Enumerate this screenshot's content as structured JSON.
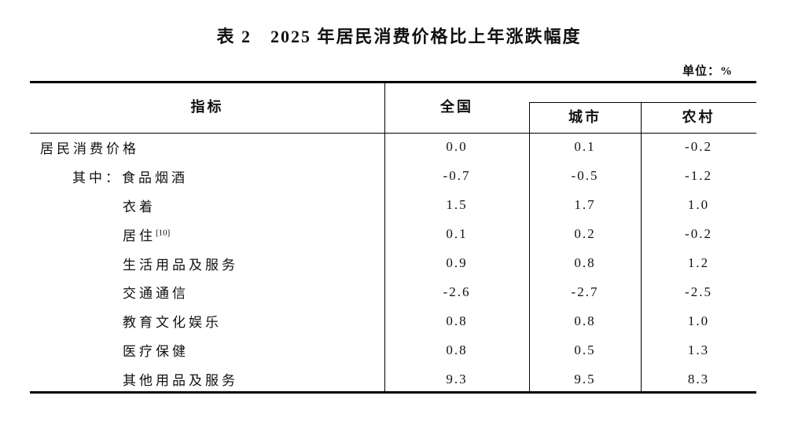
{
  "title": "表 2　2025 年居民消费价格比上年涨跌幅度",
  "unit_label": "单位：%",
  "table": {
    "columns": {
      "indicator": "指标",
      "national": "全国",
      "urban": "城市",
      "rural": "农村"
    },
    "rows": [
      {
        "label": "居民消费价格",
        "sup": "",
        "indent": 0,
        "national": "0.0",
        "urban": "0.1",
        "rural": "-0.2"
      },
      {
        "label": "其中：食品烟酒",
        "sup": "",
        "indent": 1,
        "national": "-0.7",
        "urban": "-0.5",
        "rural": "-1.2"
      },
      {
        "label": "衣着",
        "sup": "",
        "indent": 2,
        "national": "1.5",
        "urban": "1.7",
        "rural": "1.0"
      },
      {
        "label": "居住",
        "sup": "[10]",
        "indent": 2,
        "national": "0.1",
        "urban": "0.2",
        "rural": "-0.2"
      },
      {
        "label": "生活用品及服务",
        "sup": "",
        "indent": 2,
        "national": "0.9",
        "urban": "0.8",
        "rural": "1.2"
      },
      {
        "label": "交通通信",
        "sup": "",
        "indent": 2,
        "national": "-2.6",
        "urban": "-2.7",
        "rural": "-2.5"
      },
      {
        "label": "教育文化娱乐",
        "sup": "",
        "indent": 2,
        "national": "0.8",
        "urban": "0.8",
        "rural": "1.0"
      },
      {
        "label": "医疗保健",
        "sup": "",
        "indent": 2,
        "national": "0.8",
        "urban": "0.5",
        "rural": "1.3"
      },
      {
        "label": "其他用品及服务",
        "sup": "",
        "indent": 2,
        "national": "9.3",
        "urban": "9.5",
        "rural": "8.3"
      }
    ]
  },
  "colors": {
    "background": "#ffffff",
    "text": "#111111",
    "rule": "#000000"
  }
}
